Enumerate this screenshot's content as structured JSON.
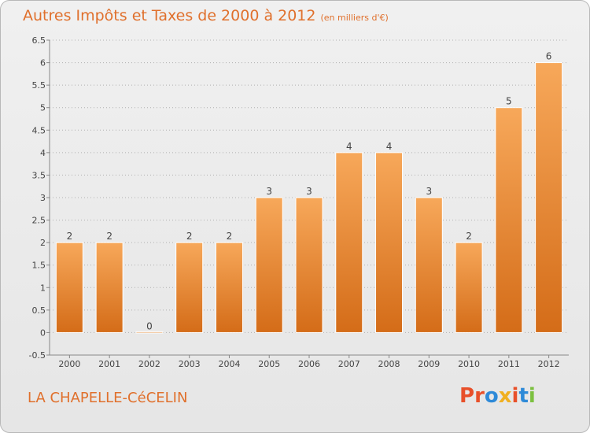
{
  "header": {
    "title": "Autres Impôts et Taxes de 2000 à 2012",
    "unit": "(en milliers d'€)"
  },
  "footer": {
    "commune": "LA CHAPELLE-CéCELIN",
    "brand": "Proxiti",
    "brand_colors": [
      "#e8502a",
      "#e8502a",
      "#2e8ad8",
      "#f0b020",
      "#e8502a",
      "#2e8ad8",
      "#7cc040"
    ]
  },
  "colors": {
    "bar_top": "#f7a85a",
    "bar_bottom": "#d46c18",
    "axis": "#888888",
    "grid": "#b0b0b0",
    "title": "#e0702c"
  },
  "chart_data": {
    "type": "bar",
    "title": "Autres Impôts et Taxes de 2000 à 2012",
    "subtitle": "(en milliers d'€)",
    "categories": [
      "2000",
      "2001",
      "2002",
      "2003",
      "2004",
      "2005",
      "2006",
      "2007",
      "2008",
      "2009",
      "2010",
      "2011",
      "2012"
    ],
    "values": [
      2,
      2,
      0,
      2,
      2,
      3,
      3,
      4,
      4,
      3,
      2,
      5,
      6
    ],
    "data_labels": [
      "2",
      "2",
      "0",
      "2",
      "2",
      "3",
      "3",
      "4",
      "4",
      "3",
      "2",
      "5",
      "6"
    ],
    "yticks": [
      "-0.5",
      "0",
      "0.5",
      "1",
      "1.5",
      "2",
      "2.5",
      "3",
      "3.5",
      "4",
      "4.5",
      "5",
      "5.5",
      "6",
      "6.5"
    ],
    "ylim": [
      -0.5,
      6.5
    ],
    "grid": true,
    "grid_style": "dotted-horizontal"
  }
}
